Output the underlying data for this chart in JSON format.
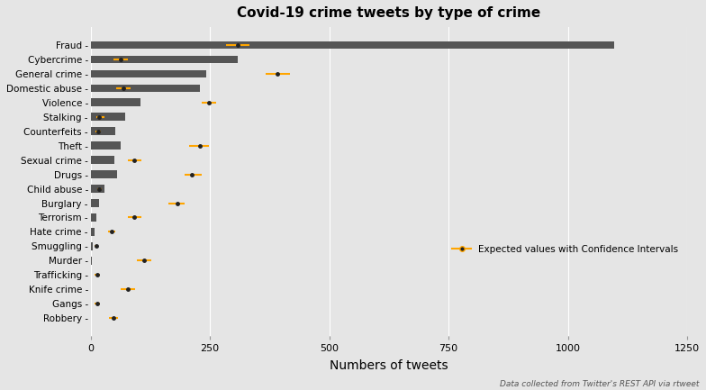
{
  "title": "Covid-19 crime tweets by type of crime",
  "xlabel": "Numbers of tweets",
  "categories": [
    "Robbery",
    "Gangs",
    "Knife crime",
    "Trafficking",
    "Murder",
    "Smuggling",
    "Hate crime",
    "Terrorism",
    "Burglary",
    "Child abuse",
    "Drugs",
    "Sexual crime",
    "Theft",
    "Counterfeits",
    "Stalking",
    "Violence",
    "Domestic abuse",
    "General crime",
    "Cybercrime",
    "Fraud"
  ],
  "bar_values": [
    0,
    0,
    0,
    0,
    2,
    5,
    8,
    12,
    18,
    28,
    55,
    50,
    62,
    52,
    72,
    105,
    228,
    242,
    308,
    1098
  ],
  "ci_center": [
    48,
    14,
    78,
    14,
    112,
    11,
    43,
    92,
    182,
    18,
    212,
    92,
    228,
    15,
    18,
    248,
    68,
    392,
    62,
    308
  ],
  "ci_low": [
    38,
    9,
    63,
    9,
    97,
    9,
    36,
    77,
    162,
    13,
    197,
    77,
    207,
    10,
    12,
    232,
    53,
    367,
    47,
    283
  ],
  "ci_high": [
    58,
    19,
    93,
    19,
    127,
    13,
    52,
    107,
    197,
    23,
    232,
    107,
    248,
    22,
    28,
    263,
    83,
    417,
    77,
    333
  ],
  "bar_color": "#555555",
  "ci_color": "#FFA500",
  "dot_color": "#222222",
  "bg_color": "#e5e5e5",
  "grid_color": "#ffffff",
  "footnote": "Data collected from Twitter's REST API via rtweet",
  "xlim": [
    0,
    1250
  ],
  "xticks": [
    0,
    250,
    500,
    750,
    1000,
    1250
  ]
}
